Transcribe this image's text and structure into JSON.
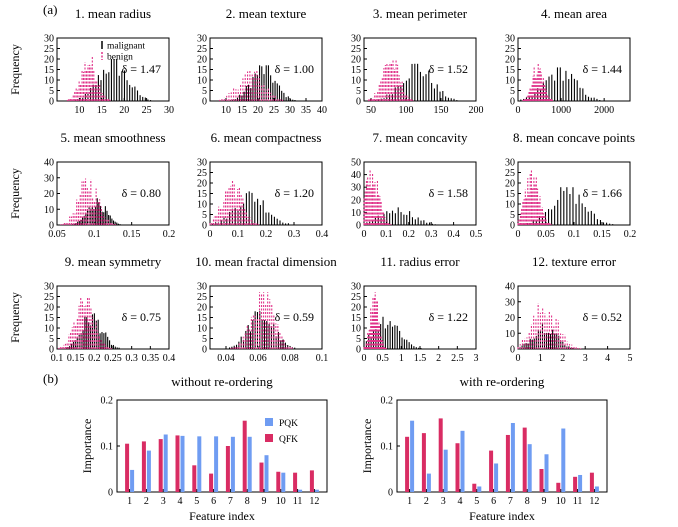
{
  "figure": {
    "label_a": "(a)",
    "label_b": "(b)",
    "ylabel": "Frequency",
    "legend": {
      "malignant": "malignant",
      "benign": "benign"
    },
    "colors": {
      "malignant": "#000000",
      "benign": "#e0338a",
      "pqk": "#6f9cf2",
      "qfk": "#d92c63"
    }
  },
  "chart_data": [
    {
      "type": "bar",
      "title": "1. mean radius",
      "delta": "δ = 1.47",
      "xlim": [
        5,
        30
      ],
      "ylim": [
        0,
        30
      ],
      "xticks": [
        "10",
        "15",
        "20",
        "25",
        "30"
      ],
      "yticks": [
        "0",
        "5",
        "10",
        "15",
        "20",
        "25",
        "30"
      ],
      "benign": {
        "center": 12.1,
        "spread": 1.8,
        "peak": 21
      },
      "malignant": {
        "center": 17.5,
        "spread": 3.2,
        "peak": 20
      }
    },
    {
      "type": "bar",
      "title": "2. mean texture",
      "delta": "δ = 1.00",
      "xlim": [
        5,
        40
      ],
      "ylim": [
        0,
        30
      ],
      "xticks": [
        "10",
        "15",
        "20",
        "25",
        "30",
        "35",
        "40"
      ],
      "yticks": [
        "0",
        "5",
        "10",
        "15",
        "20",
        "25",
        "30"
      ],
      "benign": {
        "center": 17.9,
        "spread": 4.0,
        "peak": 15
      },
      "malignant": {
        "center": 21.6,
        "spread": 3.8,
        "peak": 17
      }
    },
    {
      "type": "bar",
      "title": "3. mean perimeter",
      "delta": "δ = 1.52",
      "xlim": [
        40,
        200
      ],
      "ylim": [
        0,
        30
      ],
      "xticks": [
        "50",
        "100",
        "150",
        "200"
      ],
      "yticks": [
        "0",
        "5",
        "10",
        "15",
        "20",
        "25",
        "30"
      ],
      "benign": {
        "center": 78,
        "spread": 12,
        "peak": 22
      },
      "malignant": {
        "center": 115,
        "spread": 22,
        "peak": 18
      }
    },
    {
      "type": "bar",
      "title": "4. mean area",
      "delta": "δ = 1.44",
      "xlim": [
        0,
        2600
      ],
      "ylim": [
        0,
        30
      ],
      "xticks": [
        "0",
        "1000",
        "2000"
      ],
      "yticks": [
        "0",
        "5",
        "10",
        "15",
        "20",
        "25",
        "30"
      ],
      "benign": {
        "center": 460,
        "spread": 130,
        "peak": 18
      },
      "malignant": {
        "center": 980,
        "spread": 360,
        "peak": 16
      }
    },
    {
      "type": "bar",
      "title": "5. mean smoothness",
      "delta": "δ = 0.80",
      "xlim": [
        0.05,
        0.2
      ],
      "ylim": [
        0,
        40
      ],
      "xticks": [
        "0.05",
        "0.1",
        "0.15",
        "0.2"
      ],
      "yticks": [
        "0",
        "10",
        "20",
        "30",
        "40"
      ],
      "benign": {
        "center": 0.092,
        "spread": 0.013,
        "peak": 30
      },
      "malignant": {
        "center": 0.103,
        "spread": 0.012,
        "peak": 17
      }
    },
    {
      "type": "bar",
      "title": "6. mean compactness",
      "delta": "δ = 1.20",
      "xlim": [
        0,
        0.4
      ],
      "ylim": [
        0,
        30
      ],
      "xticks": [
        "0",
        "0.1",
        "0.2",
        "0.3",
        "0.4"
      ],
      "yticks": [
        "0",
        "5",
        "10",
        "15",
        "20",
        "25",
        "30"
      ],
      "benign": {
        "center": 0.08,
        "spread": 0.034,
        "peak": 22
      },
      "malignant": {
        "center": 0.145,
        "spread": 0.055,
        "peak": 16
      }
    },
    {
      "type": "bar",
      "title": "7. mean concavity",
      "delta": "δ = 1.58",
      "xlim": [
        0,
        0.5
      ],
      "ylim": [
        0,
        50
      ],
      "xticks": [
        "0",
        "0.1",
        "0.2",
        "0.3",
        "0.4",
        "0.5"
      ],
      "yticks": [
        "0",
        "10",
        "20",
        "30",
        "40",
        "50"
      ],
      "benign": {
        "center": 0.035,
        "spread": 0.03,
        "peak": 45
      },
      "malignant": {
        "center": 0.15,
        "spread": 0.07,
        "peak": 14
      }
    },
    {
      "type": "bar",
      "title": "8. mean concave points",
      "delta": "δ = 1.66",
      "xlim": [
        0,
        0.2
      ],
      "ylim": [
        0,
        30
      ],
      "xticks": [
        "0",
        "0.05",
        "0.1",
        "0.15",
        "0.2"
      ],
      "yticks": [
        "0",
        "5",
        "10",
        "15",
        "20",
        "25",
        "30"
      ],
      "benign": {
        "center": 0.025,
        "spread": 0.012,
        "peak": 26
      },
      "malignant": {
        "center": 0.088,
        "spread": 0.03,
        "peak": 18
      }
    },
    {
      "type": "bar",
      "title": "9. mean symmetry",
      "delta": "δ = 0.75",
      "xlim": [
        0.1,
        0.4
      ],
      "ylim": [
        0,
        30
      ],
      "xticks": [
        "0.1",
        "0.15",
        "0.2",
        "0.25",
        "0.3",
        "0.35",
        "0.4"
      ],
      "yticks": [
        "0",
        "5",
        "10",
        "15",
        "20",
        "25",
        "30"
      ],
      "benign": {
        "center": 0.174,
        "spread": 0.025,
        "peak": 25
      },
      "malignant": {
        "center": 0.193,
        "spread": 0.028,
        "peak": 17
      }
    },
    {
      "type": "bar",
      "title": "10. mean fractal dimension",
      "delta": "δ = 0.59",
      "xlim": [
        0.03,
        0.1
      ],
      "ylim": [
        0,
        30
      ],
      "xticks": [
        "0.04",
        "0.06",
        "0.08",
        "0.1"
      ],
      "yticks": [
        "0",
        "5",
        "10",
        "15",
        "20",
        "25",
        "30"
      ],
      "benign": {
        "center": 0.063,
        "spread": 0.007,
        "peak": 27
      },
      "malignant": {
        "center": 0.062,
        "spread": 0.008,
        "peak": 18
      }
    },
    {
      "type": "bar",
      "title": "11. radius error",
      "delta": "δ = 1.22",
      "xlim": [
        0,
        3
      ],
      "ylim": [
        0,
        30
      ],
      "xticks": [
        "0",
        "0.5",
        "1",
        "1.5",
        "2",
        "2.5",
        "3"
      ],
      "yticks": [
        "0",
        "5",
        "10",
        "15",
        "20",
        "25",
        "30"
      ],
      "benign": {
        "center": 0.28,
        "spread": 0.11,
        "peak": 27
      },
      "malignant": {
        "center": 0.6,
        "spread": 0.35,
        "peak": 16
      }
    },
    {
      "type": "bar",
      "title": "12. texture error",
      "delta": "δ = 0.52",
      "xlim": [
        0,
        5
      ],
      "ylim": [
        0,
        40
      ],
      "xticks": [
        "0",
        "1",
        "2",
        "3",
        "4",
        "5"
      ],
      "yticks": [
        "0",
        "10",
        "20",
        "30",
        "40"
      ],
      "benign": {
        "center": 1.2,
        "spread": 0.55,
        "peak": 30
      },
      "malignant": {
        "center": 1.2,
        "spread": 0.5,
        "peak": 17
      }
    },
    {
      "type": "bar",
      "title": "without re-ordering",
      "xlabel": "Feature index",
      "ylabel": "Importance",
      "ylim": [
        0,
        0.2
      ],
      "yticks": [
        "0",
        "0.1",
        "0.2"
      ],
      "categories": [
        "1",
        "2",
        "3",
        "4",
        "5",
        "6",
        "7",
        "8",
        "9",
        "10",
        "11",
        "12"
      ],
      "series": [
        {
          "name": "PQK",
          "values": [
            0.048,
            0.09,
            0.125,
            0.122,
            0.121,
            0.121,
            0.12,
            0.12,
            0.08,
            0.042,
            0.005,
            0.005
          ]
        },
        {
          "name": "QFK",
          "values": [
            0.105,
            0.11,
            0.115,
            0.123,
            0.058,
            0.04,
            0.1,
            0.155,
            0.064,
            0.044,
            0.042,
            0.047
          ]
        }
      ]
    },
    {
      "type": "bar",
      "title": "with re-ordering",
      "xlabel": "Feature index",
      "ylabel": "Importance",
      "ylim": [
        0,
        0.2
      ],
      "yticks": [
        "0",
        "0.1",
        "0.2"
      ],
      "categories": [
        "1",
        "2",
        "3",
        "4",
        "5",
        "6",
        "7",
        "8",
        "9",
        "10",
        "11",
        "12"
      ],
      "series": [
        {
          "name": "PQK",
          "values": [
            0.155,
            0.04,
            0.092,
            0.133,
            0.012,
            0.062,
            0.15,
            0.104,
            0.082,
            0.138,
            0.037,
            0.012
          ]
        },
        {
          "name": "QFK",
          "values": [
            0.12,
            0.128,
            0.16,
            0.106,
            0.018,
            0.09,
            0.124,
            0.14,
            0.05,
            0.02,
            0.033,
            0.042
          ]
        }
      ]
    }
  ]
}
